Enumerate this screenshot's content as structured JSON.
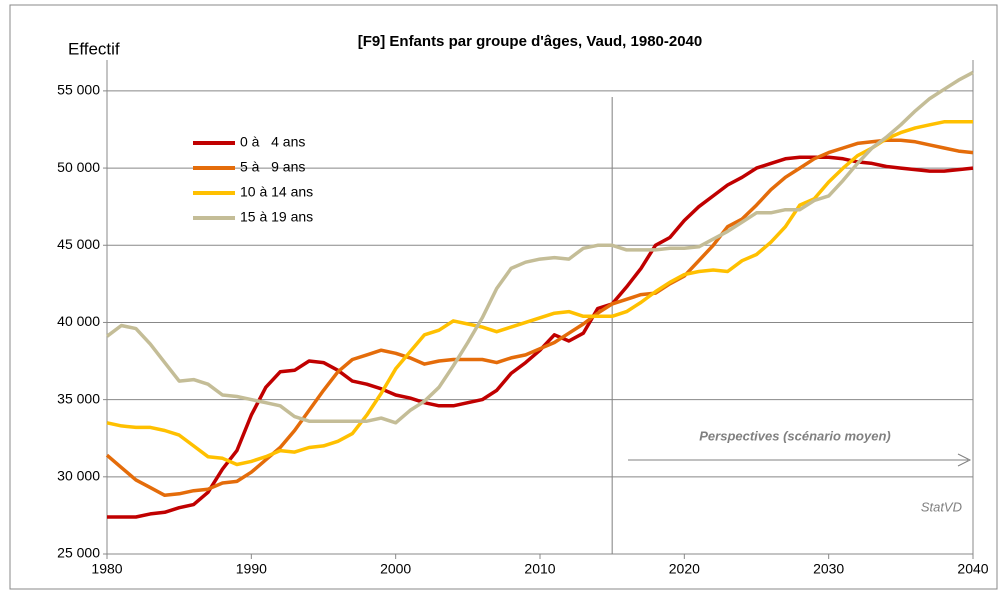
{
  "chart_data": {
    "type": "line",
    "title": "[F9]  Enfants par groupe d'âges, Vaud, 1980-2040",
    "y_label": "Effectif",
    "annotation": "Perspectives (scénario moyen)",
    "source": "StatVD",
    "projection_start": 2015,
    "legend": "upper left",
    "grid": true,
    "x": [
      1980,
      1981,
      1982,
      1983,
      1984,
      1985,
      1986,
      1987,
      1988,
      1989,
      1990,
      1991,
      1992,
      1993,
      1994,
      1995,
      1996,
      1997,
      1998,
      1999,
      2000,
      2001,
      2002,
      2003,
      2004,
      2005,
      2006,
      2007,
      2008,
      2009,
      2010,
      2011,
      2012,
      2013,
      2014,
      2015,
      2016,
      2017,
      2018,
      2019,
      2020,
      2021,
      2022,
      2023,
      2024,
      2025,
      2026,
      2027,
      2028,
      2029,
      2030,
      2031,
      2032,
      2033,
      2034,
      2035,
      2036,
      2037,
      2038,
      2039,
      2040
    ],
    "xlim": [
      1980,
      2040
    ],
    "xticks": [
      1980,
      1990,
      2000,
      2010,
      2020,
      2030,
      2040
    ],
    "ylim": [
      25000,
      57000
    ],
    "yticks": [
      {
        "value": 25000,
        "label": "25 000"
      },
      {
        "value": 30000,
        "label": "30 000"
      },
      {
        "value": 35000,
        "label": "35 000"
      },
      {
        "value": 40000,
        "label": "40 000"
      },
      {
        "value": 45000,
        "label": "45 000"
      },
      {
        "value": 50000,
        "label": "50 000"
      },
      {
        "value": 55000,
        "label": "55 000"
      }
    ],
    "series": [
      {
        "name": "0 à   4 ans",
        "color": "#c00000",
        "values": [
          27400,
          27400,
          27400,
          27600,
          27700,
          28000,
          28200,
          29000,
          30500,
          31700,
          34000,
          35800,
          36800,
          36900,
          37500,
          37400,
          36900,
          36200,
          36000,
          35700,
          35300,
          35100,
          34800,
          34600,
          34600,
          34800,
          35000,
          35600,
          36700,
          37400,
          38200,
          39200,
          38800,
          39300,
          40900,
          41200,
          42300,
          43500,
          45000,
          45500,
          46600,
          47500,
          48200,
          48900,
          49400,
          50000,
          50300,
          50600,
          50700,
          50700,
          50700,
          50600,
          50400,
          50300,
          50100,
          50000,
          49900,
          49800,
          49800,
          49900,
          50000
        ]
      },
      {
        "name": "5 à   9 ans",
        "color": "#e46c0a",
        "values": [
          31400,
          30600,
          29800,
          29300,
          28800,
          28900,
          29100,
          29200,
          29600,
          29700,
          30300,
          31100,
          31900,
          33000,
          34300,
          35600,
          36800,
          37600,
          37900,
          38200,
          38000,
          37700,
          37300,
          37500,
          37600,
          37600,
          37600,
          37400,
          37700,
          37900,
          38300,
          38700,
          39300,
          39900,
          40600,
          41200,
          41500,
          41800,
          41900,
          42500,
          43000,
          44000,
          45000,
          46200,
          46700,
          47600,
          48600,
          49400,
          50000,
          50600,
          51000,
          51300,
          51600,
          51700,
          51800,
          51800,
          51700,
          51500,
          51300,
          51100,
          51000
        ]
      },
      {
        "name": "10 à 14 ans",
        "color": "#ffc000",
        "values": [
          33500,
          33300,
          33200,
          33200,
          33000,
          32700,
          32000,
          31300,
          31200,
          30800,
          31000,
          31300,
          31700,
          31600,
          31900,
          32000,
          32300,
          32800,
          34000,
          35400,
          37000,
          38100,
          39200,
          39500,
          40100,
          39900,
          39700,
          39400,
          39700,
          40000,
          40300,
          40600,
          40700,
          40400,
          40400,
          40400,
          40700,
          41300,
          42000,
          42600,
          43100,
          43300,
          43400,
          43300,
          44000,
          44400,
          45200,
          46200,
          47600,
          48000,
          49100,
          50000,
          50800,
          51300,
          51900,
          52300,
          52600,
          52800,
          53000,
          53000,
          53000
        ]
      },
      {
        "name": "15 à 19 ans",
        "color": "#c4bd97",
        "values": [
          39100,
          39800,
          39600,
          38600,
          37400,
          36200,
          36300,
          36000,
          35300,
          35200,
          35000,
          34800,
          34600,
          33900,
          33600,
          33600,
          33600,
          33600,
          33600,
          33800,
          33500,
          34300,
          34900,
          35800,
          37200,
          38700,
          40300,
          42200,
          43500,
          43900,
          44100,
          44200,
          44100,
          44800,
          45000,
          45000,
          44700,
          44700,
          44700,
          44800,
          44800,
          44900,
          45400,
          45900,
          46500,
          47100,
          47100,
          47300,
          47300,
          47900,
          48200,
          49200,
          50300,
          51300,
          52000,
          52800,
          53700,
          54500,
          55100,
          55700,
          56200
        ]
      }
    ]
  }
}
